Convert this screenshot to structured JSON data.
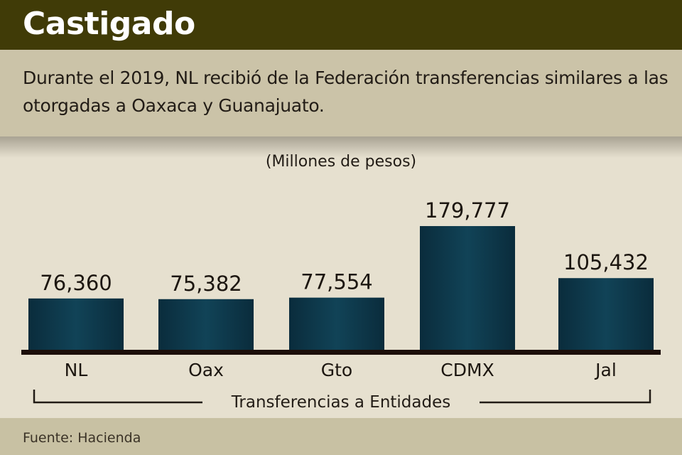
{
  "header": {
    "title": "Castigado"
  },
  "subtitle": "Durante el 2019, NL recibió de la Federación transferencias similares a las otorgadas a Oaxaca y Guanajuato.",
  "footer": {
    "source": "Fuente: Hacienda"
  },
  "chart_data": {
    "type": "bar",
    "title": "",
    "unit_label": "(Millones de pesos)",
    "categories": [
      "NL",
      "Oax",
      "Gto",
      "CDMX",
      "Jal"
    ],
    "values": [
      76360,
      75382,
      77554,
      179777,
      105432
    ],
    "value_labels": [
      "76,360",
      "75,382",
      "77,554",
      "179,777",
      "105,432"
    ],
    "xlabel": "Transferencias a Entidades",
    "ylabel": "",
    "ylim": [
      0,
      180000
    ],
    "grid": false,
    "bar_color": "#0f3a4e"
  }
}
